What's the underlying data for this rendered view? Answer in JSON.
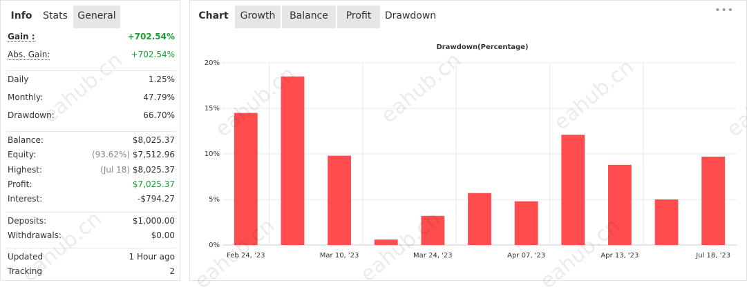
{
  "left_panel": {
    "tabs": [
      "Info",
      "Stats",
      "General"
    ],
    "active_tab": 1,
    "sections": [
      [
        {
          "label": "Gain :",
          "value": "+702.54%",
          "color": "#1a9c2e",
          "bold": true
        },
        {
          "label": "Abs. Gain:",
          "value": "+702.54%",
          "color": "#1a9c2e"
        }
      ],
      [
        {
          "label": "Daily",
          "value": "1.25%"
        },
        {
          "label": "Monthly:",
          "value": "47.79%"
        },
        {
          "label": "Drawdown:",
          "value": "66.70%"
        }
      ],
      [
        {
          "label": "Balance:",
          "value": "$8,025.37"
        },
        {
          "label": "Equity:",
          "note": "(93.62%)",
          "value": "$7,512.96"
        },
        {
          "label": "Highest:",
          "note": "(Jul 18)",
          "value": "$8,025.37"
        },
        {
          "label": "Profit:",
          "value": "$7,025.37",
          "color": "#1a9c2e"
        },
        {
          "label": "Interest:",
          "value": "-$794.27"
        }
      ],
      [
        {
          "label": "Deposits:",
          "value": "$1,000.00"
        },
        {
          "label": "Withdrawals:",
          "value": "$0.00"
        }
      ],
      [
        {
          "label": "Updated",
          "value": "1 Hour ago"
        },
        {
          "label": "Tracking",
          "value": "2"
        }
      ]
    ]
  },
  "right_panel": {
    "tabs": [
      "Chart",
      "Growth",
      "Balance",
      "Profit",
      "Drawdown"
    ],
    "active_tab": 4
  },
  "watermark": "eahub.cn",
  "chart_data": {
    "type": "bar",
    "title": "Drawdown(Percentage)",
    "categories": [
      "Feb 24, '23",
      null,
      "Mar 10, '23",
      null,
      "Mar 24, '23",
      null,
      "Apr 07, '23",
      null,
      "Apr 13, '23",
      null,
      "Jul 18, '23"
    ],
    "values": [
      14.5,
      18.5,
      9.8,
      0.6,
      3.2,
      5.7,
      4.8,
      12.1,
      8.8,
      5.0,
      9.7
    ],
    "color": "#ff4d4f",
    "ylim": [
      0,
      20
    ],
    "yticks": [
      {
        "value": 0,
        "label": "0%"
      },
      {
        "value": 5,
        "label": "5%"
      },
      {
        "value": 10,
        "label": "10%"
      },
      {
        "value": 15,
        "label": "15%"
      },
      {
        "value": 20,
        "label": "20%"
      }
    ],
    "grid": true
  }
}
